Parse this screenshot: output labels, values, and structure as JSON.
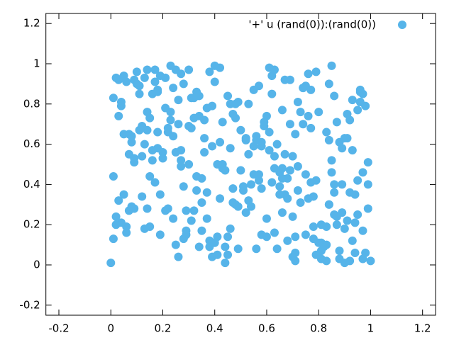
{
  "chart_data": {
    "type": "scatter",
    "xlim": [
      -0.25,
      1.25
    ],
    "ylim": [
      -0.25,
      1.25
    ],
    "xticks": [
      -0.2,
      0,
      0.2,
      0.4,
      0.6,
      0.8,
      1,
      1.2
    ],
    "yticks": [
      -0.2,
      0,
      0.2,
      0.4,
      0.6,
      0.8,
      1,
      1.2
    ],
    "legend": "upper right",
    "series": [
      {
        "name": "'+' u (rand(0)):(rand(0))",
        "color": "#56b4e9",
        "x": [
          0.12,
          0.87,
          0.45,
          0.03,
          0.66,
          0.29,
          0.91,
          0.54,
          0.18,
          0.77,
          0.38,
          0.95,
          0.07,
          0.61,
          0.24,
          0.83,
          0.49,
          0.15,
          0.72,
          0.33,
          0.58,
          0.02,
          0.89,
          0.41,
          0.26,
          0.69,
          0.11,
          0.97,
          0.52,
          0.35,
          0.79,
          0.06,
          0.63,
          0.21,
          0.86,
          0.44,
          0.14,
          0.74,
          0.31,
          0.99,
          0.47,
          0.09,
          0.68,
          0.23,
          0.81,
          0.56,
          0.37,
          0.93,
          0.16,
          0.71,
          0.28,
          0.85,
          0.04,
          0.59,
          0.42,
          0.76,
          0.19,
          0.64,
          0.34,
          0.88,
          0.51,
          0.13,
          0.96,
          0.27,
          0.73,
          0.39,
          0.08,
          0.62,
          0.84,
          0.22,
          0.55,
          0.01,
          0.78,
          0.46,
          0.32,
          0.92,
          0.17,
          0.67,
          0.43,
          0.05,
          0.81,
          0.36,
          0.98,
          0.25,
          0.57,
          0.11,
          0.7,
          0.48,
          0.9,
          0.2,
          0.65,
          0.3,
          0.84,
          0.06,
          0.53,
          0.75,
          0.4,
          0.14,
          0.94,
          0.6,
          0.27,
          0.86,
          0.03,
          0.71,
          0.45,
          0.18,
          0.63,
          0.99,
          0.37,
          0.8,
          0.09,
          0.56,
          0.24,
          0.92,
          0.5,
          0.15,
          0.69,
          0.33,
          0.88,
          0.42,
          0.07,
          0.74,
          0.29,
          0.96,
          0.58,
          0.12,
          0.83,
          0.39,
          0.65,
          0.21,
          0.47,
          0.9,
          0.02,
          0.76,
          0.34,
          0.61,
          0.17,
          0.85,
          0.52,
          0.26,
          0.93,
          0.44,
          0.1,
          0.68,
          0.31,
          0.79,
          0.55,
          0.04,
          0.87,
          0.23,
          0.72,
          0.38,
          0.97,
          0.16,
          0.62,
          0.49,
          0.08,
          0.81,
          0.35,
          0.66,
          0.19,
          0.91,
          0.53,
          0.28,
          0.77,
          0.01,
          0.59,
          0.43,
          0.84,
          0.13,
          0.7,
          0.32,
          0.95,
          0.46,
          0.22,
          0.67,
          0.05,
          0.89,
          0.4,
          0.75,
          0.57,
          0.14,
          0.82,
          0.36,
          0.99,
          0.25,
          0.63,
          0.09,
          0.48,
          0.78,
          0.3,
          0.94,
          0.18,
          0.54,
          0.71,
          0.03,
          0.86,
          0.41,
          0.27,
          0.6,
          0.11,
          0.73,
          0.45,
          0.92,
          0.2,
          0.66,
          0.37,
          0.83,
          0.06,
          0.51,
          0.88,
          0.29,
          0.64,
          0.15,
          0.97,
          0.42,
          0.76,
          0.24,
          0.58,
          0.33,
          0.85,
          0.02,
          0.69,
          0.47,
          0.13,
          0.8,
          0.39,
          0.96,
          0.26,
          0.61,
          0.08,
          0.74,
          0.5,
          0.19,
          0.91,
          0.35,
          0.67,
          0.44,
          0.04,
          0.79,
          0.31,
          0.98,
          0.56,
          0.21,
          0.72,
          0.1,
          0.87,
          0.43,
          0.65,
          0.28,
          0.93,
          0.16,
          0.53,
          0.77,
          0.38,
          0.01,
          0.84,
          0.6,
          0.23,
          0.7,
          0.48,
          0.17,
          0.9,
          0.34,
          0.62,
          0.07,
          0.81,
          0.55,
          0.25,
          0.95,
          0.4,
          0.68,
          0.12,
          0.86,
          0.46,
          0.3,
          0.75,
          0.05,
          0.58,
          1.0,
          0.36,
          0.89,
          0.14,
          0.71,
          0.52,
          0.22,
          0.97,
          0.41,
          0.63,
          0.09,
          0.78,
          0.27,
          0.94,
          0.49,
          0.18,
          0.83,
          0.32,
          0.66,
          0.0,
          0.57
        ],
        "values": [
          0.34,
          0.71,
          0.05,
          0.92,
          0.48,
          0.17,
          0.63,
          0.29,
          0.86,
          0.41,
          0.12,
          0.77,
          0.55,
          0.98,
          0.23,
          0.66,
          0.08,
          0.44,
          0.81,
          0.37,
          0.59,
          0.93,
          0.26,
          0.14,
          0.7,
          0.47,
          0.85,
          0.03,
          0.62,
          0.31,
          0.96,
          0.19,
          0.54,
          0.78,
          0.4,
          0.09,
          0.67,
          0.88,
          0.22,
          0.51,
          0.75,
          0.28,
          0.43,
          0.99,
          0.11,
          0.64,
          0.36,
          0.82,
          0.57,
          0.02,
          0.9,
          0.46,
          0.21,
          0.69,
          0.33,
          0.95,
          0.15,
          0.6,
          0.84,
          0.07,
          0.39,
          0.18,
          0.87,
          0.52,
          0.76,
          0.04,
          0.61,
          0.94,
          0.3,
          0.68,
          0.45,
          0.83,
          0.13,
          0.58,
          0.27,
          0.72,
          0.97,
          0.35,
          0.5,
          0.65,
          0.2,
          0.56,
          0.79,
          0.1,
          0.42,
          0.89,
          0.24,
          0.73,
          0.01,
          0.53,
          0.35,
          0.97,
          0.62,
          0.16,
          0.8,
          0.45,
          0.91,
          0.28,
          0.06,
          0.74,
          0.49,
          0.84,
          0.32,
          0.65,
          0.14,
          0.58,
          0.97,
          0.4,
          0.23,
          0.76,
          0.51,
          0.08,
          0.88,
          0.36,
          0.67,
          0.19,
          0.92,
          0.44,
          0.03,
          0.61,
          0.27,
          0.7,
          0.15,
          0.86,
          0.38,
          0.54,
          0.02,
          0.79,
          0.46,
          0.93,
          0.31,
          0.63,
          0.2,
          0.74,
          0.09,
          0.57,
          0.41,
          0.99,
          0.26,
          0.82,
          0.12,
          0.47,
          0.9,
          0.33,
          0.68,
          0.05,
          0.59,
          0.81,
          0.24,
          0.72,
          0.37,
          0.96,
          0.17,
          0.52,
          0.85,
          0.29,
          0.64,
          0.07,
          0.43,
          0.77,
          0.94,
          0.22,
          0.55,
          0.39,
          0.87,
          0.13,
          0.71,
          0.48,
          0.3,
          0.6,
          0.04,
          0.83,
          0.42,
          0.18,
          0.66,
          0.92,
          0.35,
          0.58,
          0.11,
          0.89,
          0.45,
          0.76,
          0.09,
          0.63,
          0.28,
          0.97,
          0.16,
          0.53,
          0.8,
          0.34,
          0.69,
          0.21,
          0.87,
          0.4,
          0.06,
          0.74,
          0.25,
          0.5,
          0.95,
          0.14,
          0.67,
          0.31,
          0.84,
          0.02,
          0.56,
          0.43,
          0.78,
          0.19,
          0.91,
          0.37,
          0.61,
          0.27,
          0.08,
          0.73,
          0.46,
          0.98,
          0.33,
          0.64,
          0.15,
          0.86,
          0.52,
          0.24,
          0.7,
          0.38,
          0.93,
          0.11,
          0.59,
          0.81,
          0.04,
          0.66,
          0.29,
          0.88,
          0.47,
          0.35,
          0.75,
          0.17,
          0.55,
          0.01,
          0.79,
          0.42,
          0.83,
          0.06,
          0.62,
          0.27,
          0.49,
          0.96,
          0.2,
          0.71,
          0.39,
          0.13,
          0.57,
          0.85,
          0.32,
          0.68,
          0.09,
          0.44,
          0.9,
          0.23,
          0.76,
          0.54,
          0.3,
          0.91,
          0.18,
          0.74,
          0.41,
          0.65,
          0.03,
          0.87,
          0.56,
          0.25,
          0.99,
          0.12,
          0.69,
          0.36,
          0.8,
          0.5,
          0.15,
          0.94,
          0.61,
          0.02,
          0.72,
          0.4,
          0.97,
          0.14,
          0.63,
          0.28,
          0.85,
          0.05,
          0.48,
          0.92,
          0.19,
          0.57,
          0.35,
          0.81,
          0.66,
          0.1,
          0.73,
          0.26,
          0.01,
          0.89
        ]
      }
    ]
  }
}
